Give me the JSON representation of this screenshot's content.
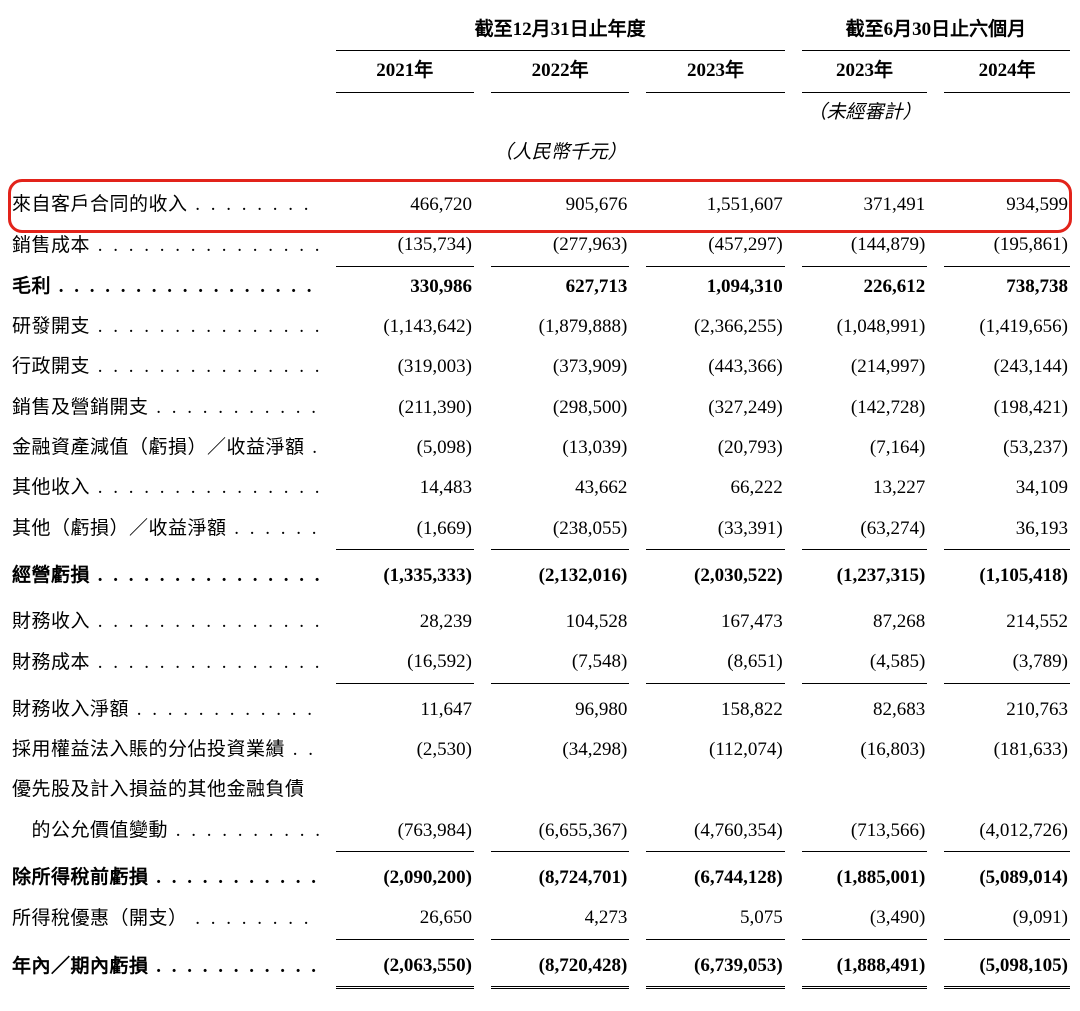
{
  "meta": {
    "currency_unit_label": "（人民幣千元）",
    "unaudited_label": "（未經審計）",
    "background_color": "#ffffff",
    "text_color": "#000000",
    "highlight_border_color": "#e2231a",
    "font_family": "Times New Roman / SimSun",
    "base_font_size_pt": 14
  },
  "header": {
    "group_a_title": "截至12月31日止年度",
    "group_b_title": "截至6月30日止六個月",
    "cols": {
      "c1": "2021年",
      "c2": "2022年",
      "c3": "2023年",
      "c4": "2023年",
      "c5": "2024年"
    }
  },
  "rows": [
    {
      "key": "revenue",
      "label": "來自客戶合同的收入",
      "bold": false,
      "highlight": true,
      "top_for": [],
      "v": [
        "466,720",
        "905,676",
        "1,551,607",
        "371,491",
        "934,599"
      ]
    },
    {
      "key": "cost_of_sales",
      "label": "銷售成本",
      "bold": false,
      "bot_for": "all",
      "v": [
        "(135,734)",
        "(277,963)",
        "(457,297)",
        "(144,879)",
        "(195,861)"
      ]
    },
    {
      "key": "gross_profit",
      "label": "毛利",
      "bold": true,
      "v": [
        "330,986",
        "627,713",
        "1,094,310",
        "226,612",
        "738,738"
      ]
    },
    {
      "key": "rnd",
      "label": "研發開支",
      "bold": false,
      "v": [
        "(1,143,642)",
        "(1,879,888)",
        "(2,366,255)",
        "(1,048,991)",
        "(1,419,656)"
      ]
    },
    {
      "key": "admin",
      "label": "行政開支",
      "bold": false,
      "v": [
        "(319,003)",
        "(373,909)",
        "(443,366)",
        "(214,997)",
        "(243,144)"
      ]
    },
    {
      "key": "selling",
      "label": "銷售及營銷開支",
      "bold": false,
      "v": [
        "(211,390)",
        "(298,500)",
        "(327,249)",
        "(142,728)",
        "(198,421)"
      ]
    },
    {
      "key": "impairment",
      "label": "金融資產減值（虧損）／收益淨額",
      "bold": false,
      "v": [
        "(5,098)",
        "(13,039)",
        "(20,793)",
        "(7,164)",
        "(53,237)"
      ]
    },
    {
      "key": "other_income",
      "label": "其他收入",
      "bold": false,
      "v": [
        "14,483",
        "43,662",
        "66,222",
        "13,227",
        "34,109"
      ]
    },
    {
      "key": "other_loss_gain",
      "label": "其他（虧損）／收益淨額",
      "bold": false,
      "bot_for": "all",
      "v": [
        "(1,669)",
        "(238,055)",
        "(33,391)",
        "(63,274)",
        "36,193"
      ]
    },
    {
      "key": "operating_loss",
      "label": "經營虧損",
      "bold": true,
      "pad_top": true,
      "v": [
        "(1,335,333)",
        "(2,132,016)",
        "(2,030,522)",
        "(1,237,315)",
        "(1,105,418)"
      ]
    },
    {
      "key": "fin_income",
      "label": "財務收入",
      "bold": false,
      "pad_top": true,
      "v": [
        "28,239",
        "104,528",
        "167,473",
        "87,268",
        "214,552"
      ]
    },
    {
      "key": "fin_cost",
      "label": "財務成本",
      "bold": false,
      "bot_for": "all",
      "v": [
        "(16,592)",
        "(7,548)",
        "(8,651)",
        "(4,585)",
        "(3,789)"
      ]
    },
    {
      "key": "net_fin_income",
      "label": "財務收入淨額",
      "bold": false,
      "pad_top": true,
      "v": [
        "11,647",
        "96,980",
        "158,822",
        "82,683",
        "210,763"
      ]
    },
    {
      "key": "equity_inv",
      "label": "採用權益法入賬的分佔投資業績",
      "bold": false,
      "v": [
        "(2,530)",
        "(34,298)",
        "(112,074)",
        "(16,803)",
        "(181,633)"
      ]
    },
    {
      "key": "pref_share_label",
      "label": "優先股及計入損益的其他金融負債",
      "bold": false,
      "is_label_only": true
    },
    {
      "key": "fair_value_indent",
      "label": "　的公允價值變動",
      "bold": false,
      "bot_for": "all",
      "v": [
        "(763,984)",
        "(6,655,367)",
        "(4,760,354)",
        "(713,566)",
        "(4,012,726)"
      ]
    },
    {
      "key": "loss_before_tax",
      "label": "除所得稅前虧損",
      "bold": true,
      "pad_top": true,
      "v": [
        "(2,090,200)",
        "(8,724,701)",
        "(6,744,128)",
        "(1,885,001)",
        "(5,089,014)"
      ]
    },
    {
      "key": "tax",
      "label": "所得稅優惠（開支）",
      "bold": false,
      "bot_for": "all",
      "v": [
        "26,650",
        "4,273",
        "5,075",
        "(3,490)",
        "(9,091)"
      ]
    },
    {
      "key": "period_loss",
      "label": "年內／期內虧損",
      "bold": true,
      "pad_top": true,
      "dbl_for": "all",
      "v": [
        "(2,063,550)",
        "(8,720,428)",
        "(6,739,053)",
        "(1,888,491)",
        "(5,098,105)"
      ]
    }
  ]
}
